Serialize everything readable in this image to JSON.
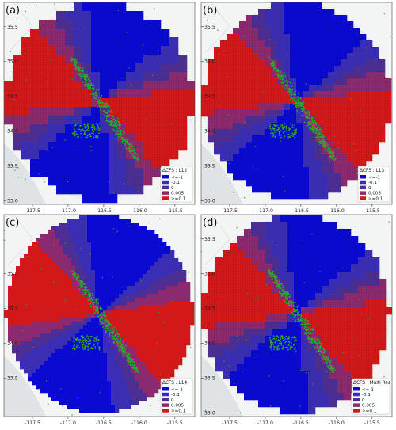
{
  "colors": {
    "very_negative": "#0a0ad2",
    "negative": "#3a2fb4",
    "neutral": "#4d2f94",
    "slightly_positive": "#8b2a6e",
    "positive": "#d21818",
    "faults": "#2fa52f",
    "basemap": "#dfe3e6",
    "land": "#f3f4f4"
  },
  "axes": {
    "x_ticks": [
      "-117.5",
      "-117.0",
      "-116.5",
      "-116.0",
      "-115.5"
    ],
    "x_values": [
      -117.5,
      -117.0,
      -116.5,
      -116.0,
      -115.5
    ],
    "y_ticks": [
      "35.5",
      "35.0",
      "34.5",
      "34.0",
      "33.5",
      "33.0"
    ],
    "y_values": [
      35.5,
      35.0,
      34.5,
      34.0,
      33.5,
      33.0
    ]
  },
  "legend_entries": [
    "<=-1",
    "-0.1",
    "0",
    "0.005",
    ">=0.1"
  ],
  "panels": [
    {
      "label": "(a)",
      "legend_title": "ΔCFS : L12",
      "style": "blocky",
      "block": 11,
      "y_ticks_shown": [
        "35.5",
        "35.0",
        "34.5",
        "34.0",
        "33.5",
        "33.0"
      ]
    },
    {
      "label": "(b)",
      "legend_title": "ΔCFS : L13",
      "style": "blocky",
      "block": 8,
      "y_ticks_shown": [
        "35.5",
        "35.0",
        "34.5",
        "34.0",
        "33.5",
        "33.0"
      ]
    },
    {
      "label": "(c)",
      "legend_title": "ΔCFS : L14",
      "style": "smooth",
      "block": 5,
      "y_ticks_shown": [
        "35.0",
        "34.5",
        "34.0",
        "33.5"
      ]
    },
    {
      "label": "(d)",
      "legend_title": "ΔCFS : Multi Res",
      "style": "blocky",
      "block": 9,
      "y_ticks_shown": [
        "35.5",
        "35.0",
        "34.5",
        "34.0",
        "33.5",
        "33.0"
      ]
    }
  ]
}
